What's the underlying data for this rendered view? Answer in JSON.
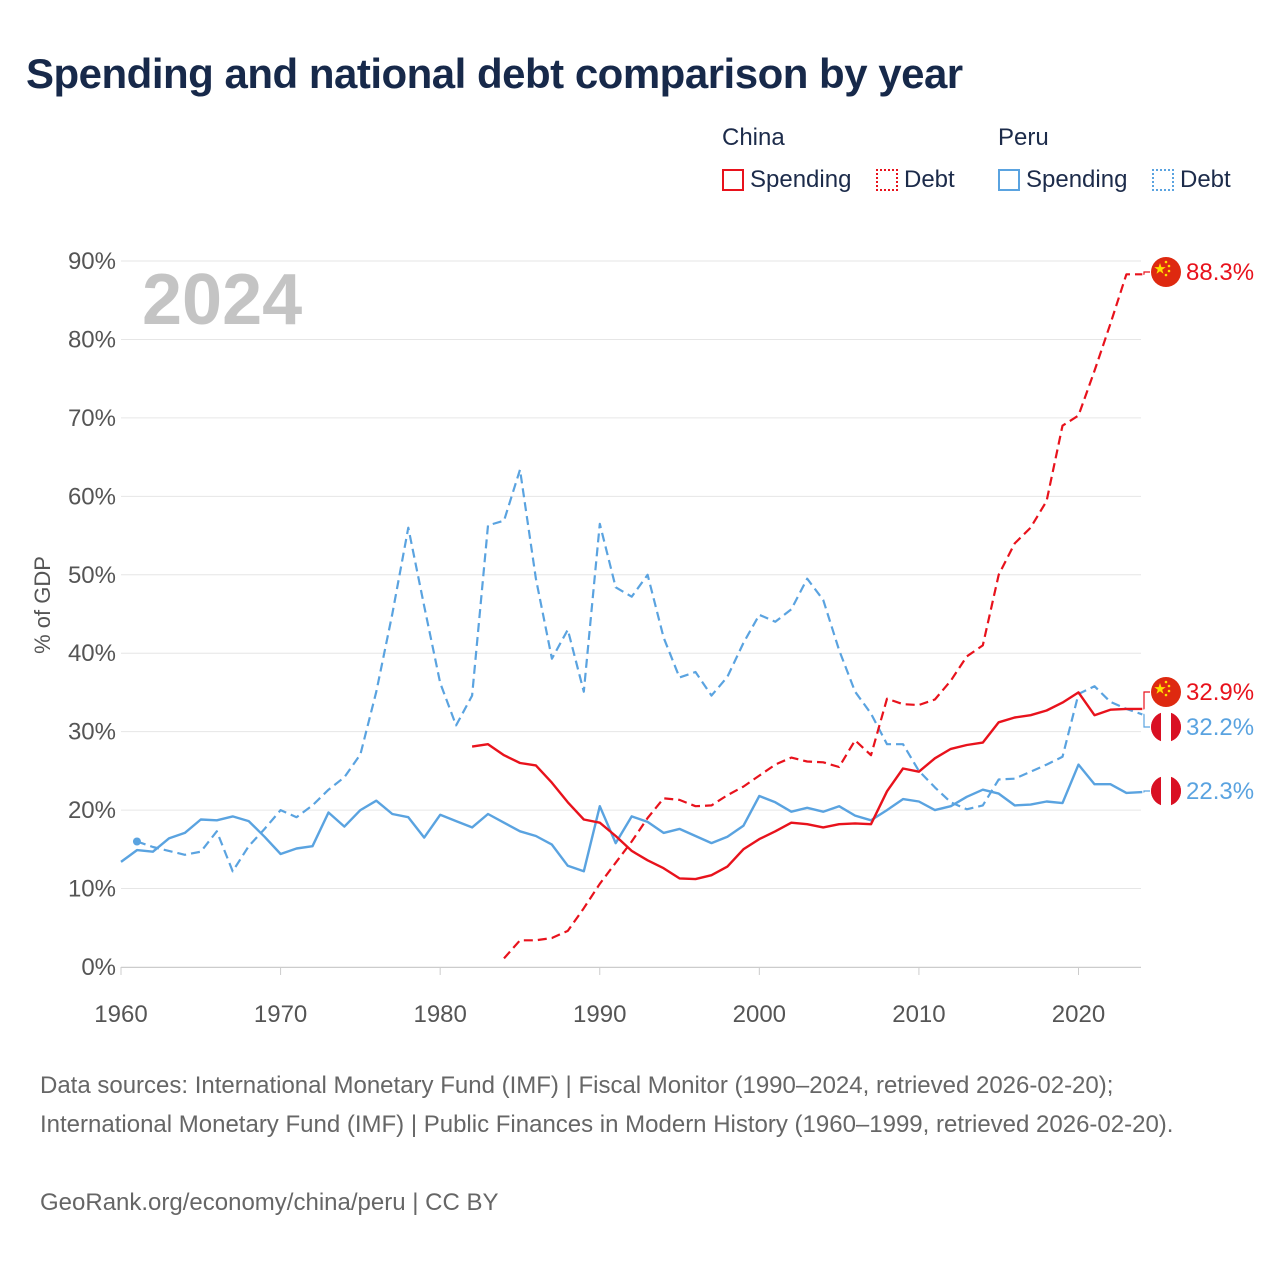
{
  "title": "Spending and national debt comparison by year",
  "legend": {
    "groups": [
      {
        "country": "China",
        "items": [
          {
            "label": "Spending",
            "color": "#e8121c",
            "style": "solid"
          },
          {
            "label": "Debt",
            "color": "#e8121c",
            "style": "dotted"
          }
        ]
      },
      {
        "country": "Peru",
        "items": [
          {
            "label": "Spending",
            "color": "#5aa3e0",
            "style": "solid"
          },
          {
            "label": "Debt",
            "color": "#5aa3e0",
            "style": "dotted"
          }
        ]
      }
    ]
  },
  "colors": {
    "china": "#e8121c",
    "peru": "#5aa3e0",
    "grid": "#e6e6e6",
    "axis_text": "#555555",
    "year_watermark": "#c4c4c4"
  },
  "chart_data": {
    "type": "line",
    "year_label": "2024",
    "ylabel": "% of GDP",
    "xlim": [
      1960,
      2024
    ],
    "ylim": [
      0,
      90
    ],
    "x_ticks": [
      1960,
      1970,
      1980,
      1990,
      2000,
      2010,
      2020
    ],
    "y_ticks": [
      0,
      10,
      20,
      30,
      40,
      50,
      60,
      70,
      80,
      90
    ],
    "y_tick_labels": [
      "0%",
      "10%",
      "20%",
      "30%",
      "40%",
      "50%",
      "60%",
      "70%",
      "80%",
      "90%"
    ],
    "series": [
      {
        "name": "China Spending",
        "country": "China",
        "measure": "Spending",
        "color": "#e8121c",
        "dash": "solid",
        "end_label": "32.9%",
        "end_icon": "china-flag",
        "points": [
          [
            1982,
            28.1
          ],
          [
            1983,
            28.4
          ],
          [
            1984,
            27
          ],
          [
            1985,
            26
          ],
          [
            1986,
            25.7
          ],
          [
            1987,
            23.5
          ],
          [
            1988,
            21
          ],
          [
            1989,
            18.8
          ],
          [
            1990,
            18.4
          ],
          [
            1991,
            16.7
          ],
          [
            1992,
            14.8
          ],
          [
            1993,
            13.6
          ],
          [
            1994,
            12.6
          ],
          [
            1995,
            11.3
          ],
          [
            1996,
            11.2
          ],
          [
            1997,
            11.7
          ],
          [
            1998,
            12.8
          ],
          [
            1999,
            15
          ],
          [
            2000,
            16.3
          ],
          [
            2001,
            17.3
          ],
          [
            2002,
            18.4
          ],
          [
            2003,
            18.2
          ],
          [
            2004,
            17.8
          ],
          [
            2005,
            18.2
          ],
          [
            2006,
            18.3
          ],
          [
            2007,
            18.2
          ],
          [
            2008,
            22.4
          ],
          [
            2009,
            25.3
          ],
          [
            2010,
            24.9
          ],
          [
            2011,
            26.6
          ],
          [
            2012,
            27.8
          ],
          [
            2013,
            28.3
          ],
          [
            2014,
            28.6
          ],
          [
            2015,
            31.2
          ],
          [
            2016,
            31.8
          ],
          [
            2017,
            32.1
          ],
          [
            2018,
            32.7
          ],
          [
            2019,
            33.7
          ],
          [
            2020,
            35
          ],
          [
            2021,
            32.1
          ],
          [
            2022,
            32.8
          ],
          [
            2023,
            32.9
          ],
          [
            2024,
            32.9
          ]
        ]
      },
      {
        "name": "China Debt",
        "country": "China",
        "measure": "Debt",
        "color": "#e8121c",
        "dash": "dashed",
        "end_label": "88.3%",
        "end_icon": "china-flag",
        "points": [
          [
            1984,
            1.1
          ],
          [
            1985,
            3.4
          ],
          [
            1986,
            3.4
          ],
          [
            1987,
            3.7
          ],
          [
            1988,
            4.6
          ],
          [
            1989,
            7.5
          ],
          [
            1990,
            10.6
          ],
          [
            1991,
            13.3
          ],
          [
            1992,
            16
          ],
          [
            1993,
            19
          ],
          [
            1994,
            21.5
          ],
          [
            1995,
            21.3
          ],
          [
            1996,
            20.5
          ],
          [
            1997,
            20.6
          ],
          [
            1998,
            21.9
          ],
          [
            1999,
            23
          ],
          [
            2000,
            24.4
          ],
          [
            2001,
            25.8
          ],
          [
            2002,
            26.7
          ],
          [
            2003,
            26.2
          ],
          [
            2004,
            26.1
          ],
          [
            2005,
            25.5
          ],
          [
            2006,
            28.9
          ],
          [
            2007,
            27
          ],
          [
            2008,
            34.2
          ],
          [
            2009,
            33.5
          ],
          [
            2010,
            33.4
          ],
          [
            2011,
            34.1
          ],
          [
            2012,
            36.5
          ],
          [
            2013,
            39.6
          ],
          [
            2014,
            41
          ],
          [
            2015,
            50
          ],
          [
            2016,
            54
          ],
          [
            2017,
            56
          ],
          [
            2018,
            59.4
          ],
          [
            2019,
            69
          ],
          [
            2020,
            70.3
          ],
          [
            2021,
            76
          ],
          [
            2022,
            82
          ],
          [
            2023,
            88.3
          ],
          [
            2024,
            88.3
          ]
        ]
      },
      {
        "name": "Peru Spending",
        "country": "Peru",
        "measure": "Spending",
        "color": "#5aa3e0",
        "dash": "solid",
        "end_label": "22.3%",
        "end_icon": "peru-flag",
        "points": [
          [
            1960,
            13.4
          ],
          [
            1961,
            14.9
          ],
          [
            1962,
            14.7
          ],
          [
            1963,
            16.4
          ],
          [
            1964,
            17.1
          ],
          [
            1965,
            18.8
          ],
          [
            1966,
            18.7
          ],
          [
            1967,
            19.2
          ],
          [
            1968,
            18.6
          ],
          [
            1969,
            16.6
          ],
          [
            1970,
            14.4
          ],
          [
            1971,
            15.1
          ],
          [
            1972,
            15.4
          ],
          [
            1973,
            19.7
          ],
          [
            1974,
            17.9
          ],
          [
            1975,
            20
          ],
          [
            1976,
            21.2
          ],
          [
            1977,
            19.5
          ],
          [
            1978,
            19.1
          ],
          [
            1979,
            16.5
          ],
          [
            1980,
            19.4
          ],
          [
            1981,
            18.6
          ],
          [
            1982,
            17.8
          ],
          [
            1983,
            19.5
          ],
          [
            1984,
            18.4
          ],
          [
            1985,
            17.3
          ],
          [
            1986,
            16.7
          ],
          [
            1987,
            15.6
          ],
          [
            1988,
            12.9
          ],
          [
            1989,
            12.2
          ],
          [
            1990,
            20.5
          ],
          [
            1991,
            15.8
          ],
          [
            1992,
            19.2
          ],
          [
            1993,
            18.5
          ],
          [
            1994,
            17.1
          ],
          [
            1995,
            17.6
          ],
          [
            1996,
            16.7
          ],
          [
            1997,
            15.8
          ],
          [
            1998,
            16.6
          ],
          [
            1999,
            18
          ],
          [
            2000,
            21.8
          ],
          [
            2001,
            21
          ],
          [
            2002,
            19.8
          ],
          [
            2003,
            20.3
          ],
          [
            2004,
            19.8
          ],
          [
            2005,
            20.5
          ],
          [
            2006,
            19.3
          ],
          [
            2007,
            18.7
          ],
          [
            2008,
            20
          ],
          [
            2009,
            21.4
          ],
          [
            2010,
            21.1
          ],
          [
            2011,
            20
          ],
          [
            2012,
            20.5
          ],
          [
            2013,
            21.7
          ],
          [
            2014,
            22.6
          ],
          [
            2015,
            22.1
          ],
          [
            2016,
            20.6
          ],
          [
            2017,
            20.7
          ],
          [
            2018,
            21.1
          ],
          [
            2019,
            20.9
          ],
          [
            2020,
            25.8
          ],
          [
            2021,
            23.3
          ],
          [
            2022,
            23.3
          ],
          [
            2023,
            22.2
          ],
          [
            2024,
            22.3
          ]
        ]
      },
      {
        "name": "Peru Debt",
        "country": "Peru",
        "measure": "Debt",
        "color": "#5aa3e0",
        "dash": "dashed",
        "end_label": "32.2%",
        "end_icon": "peru-flag",
        "points": [
          [
            1961,
            16
          ],
          [
            1962,
            15.3
          ],
          [
            1963,
            14.8
          ],
          [
            1964,
            14.3
          ],
          [
            1965,
            14.7
          ],
          [
            1966,
            17.3
          ],
          [
            1967,
            12.2
          ],
          [
            1968,
            15.4
          ],
          [
            1969,
            17.6
          ],
          [
            1970,
            20
          ],
          [
            1971,
            19.1
          ],
          [
            1972,
            20.6
          ],
          [
            1973,
            22.6
          ],
          [
            1974,
            24.2
          ],
          [
            1975,
            27.1
          ],
          [
            1976,
            35.1
          ],
          [
            1977,
            45
          ],
          [
            1978,
            56
          ],
          [
            1979,
            46
          ],
          [
            1980,
            36.2
          ],
          [
            1981,
            30.8
          ],
          [
            1982,
            34.6
          ],
          [
            1983,
            56.3
          ],
          [
            1984,
            56.9
          ],
          [
            1985,
            63.4
          ],
          [
            1986,
            49.5
          ],
          [
            1987,
            39.3
          ],
          [
            1988,
            43
          ],
          [
            1989,
            35.1
          ],
          [
            1990,
            56.5
          ],
          [
            1991,
            48.4
          ],
          [
            1992,
            47.2
          ],
          [
            1993,
            50
          ],
          [
            1994,
            42
          ],
          [
            1995,
            36.9
          ],
          [
            1996,
            37.6
          ],
          [
            1997,
            34.6
          ],
          [
            1998,
            37
          ],
          [
            1999,
            41.3
          ],
          [
            2000,
            44.9
          ],
          [
            2001,
            44
          ],
          [
            2002,
            45.6
          ],
          [
            2003,
            49.5
          ],
          [
            2004,
            46.8
          ],
          [
            2005,
            40.4
          ],
          [
            2006,
            35.1
          ],
          [
            2007,
            32.3
          ],
          [
            2008,
            28.4
          ],
          [
            2009,
            28.4
          ],
          [
            2010,
            25
          ],
          [
            2011,
            22.9
          ],
          [
            2012,
            21
          ],
          [
            2013,
            20.1
          ],
          [
            2014,
            20.6
          ],
          [
            2015,
            23.9
          ],
          [
            2016,
            24
          ],
          [
            2017,
            24.9
          ],
          [
            2018,
            25.8
          ],
          [
            2019,
            26.8
          ],
          [
            2020,
            34.8
          ],
          [
            2021,
            35.8
          ],
          [
            2022,
            33.8
          ],
          [
            2023,
            32.9
          ],
          [
            2024,
            32.2
          ]
        ]
      }
    ]
  },
  "footer": {
    "sources": "Data sources: International Monetary Fund (IMF) | Fiscal Monitor (1990–2024, retrieved 2026-02-20); International Monetary Fund (IMF) | Public Finances in Modern History (1960–1999, retrieved 2026-02-20).",
    "credit": "GeoRank.org/economy/china/peru | CC BY"
  }
}
